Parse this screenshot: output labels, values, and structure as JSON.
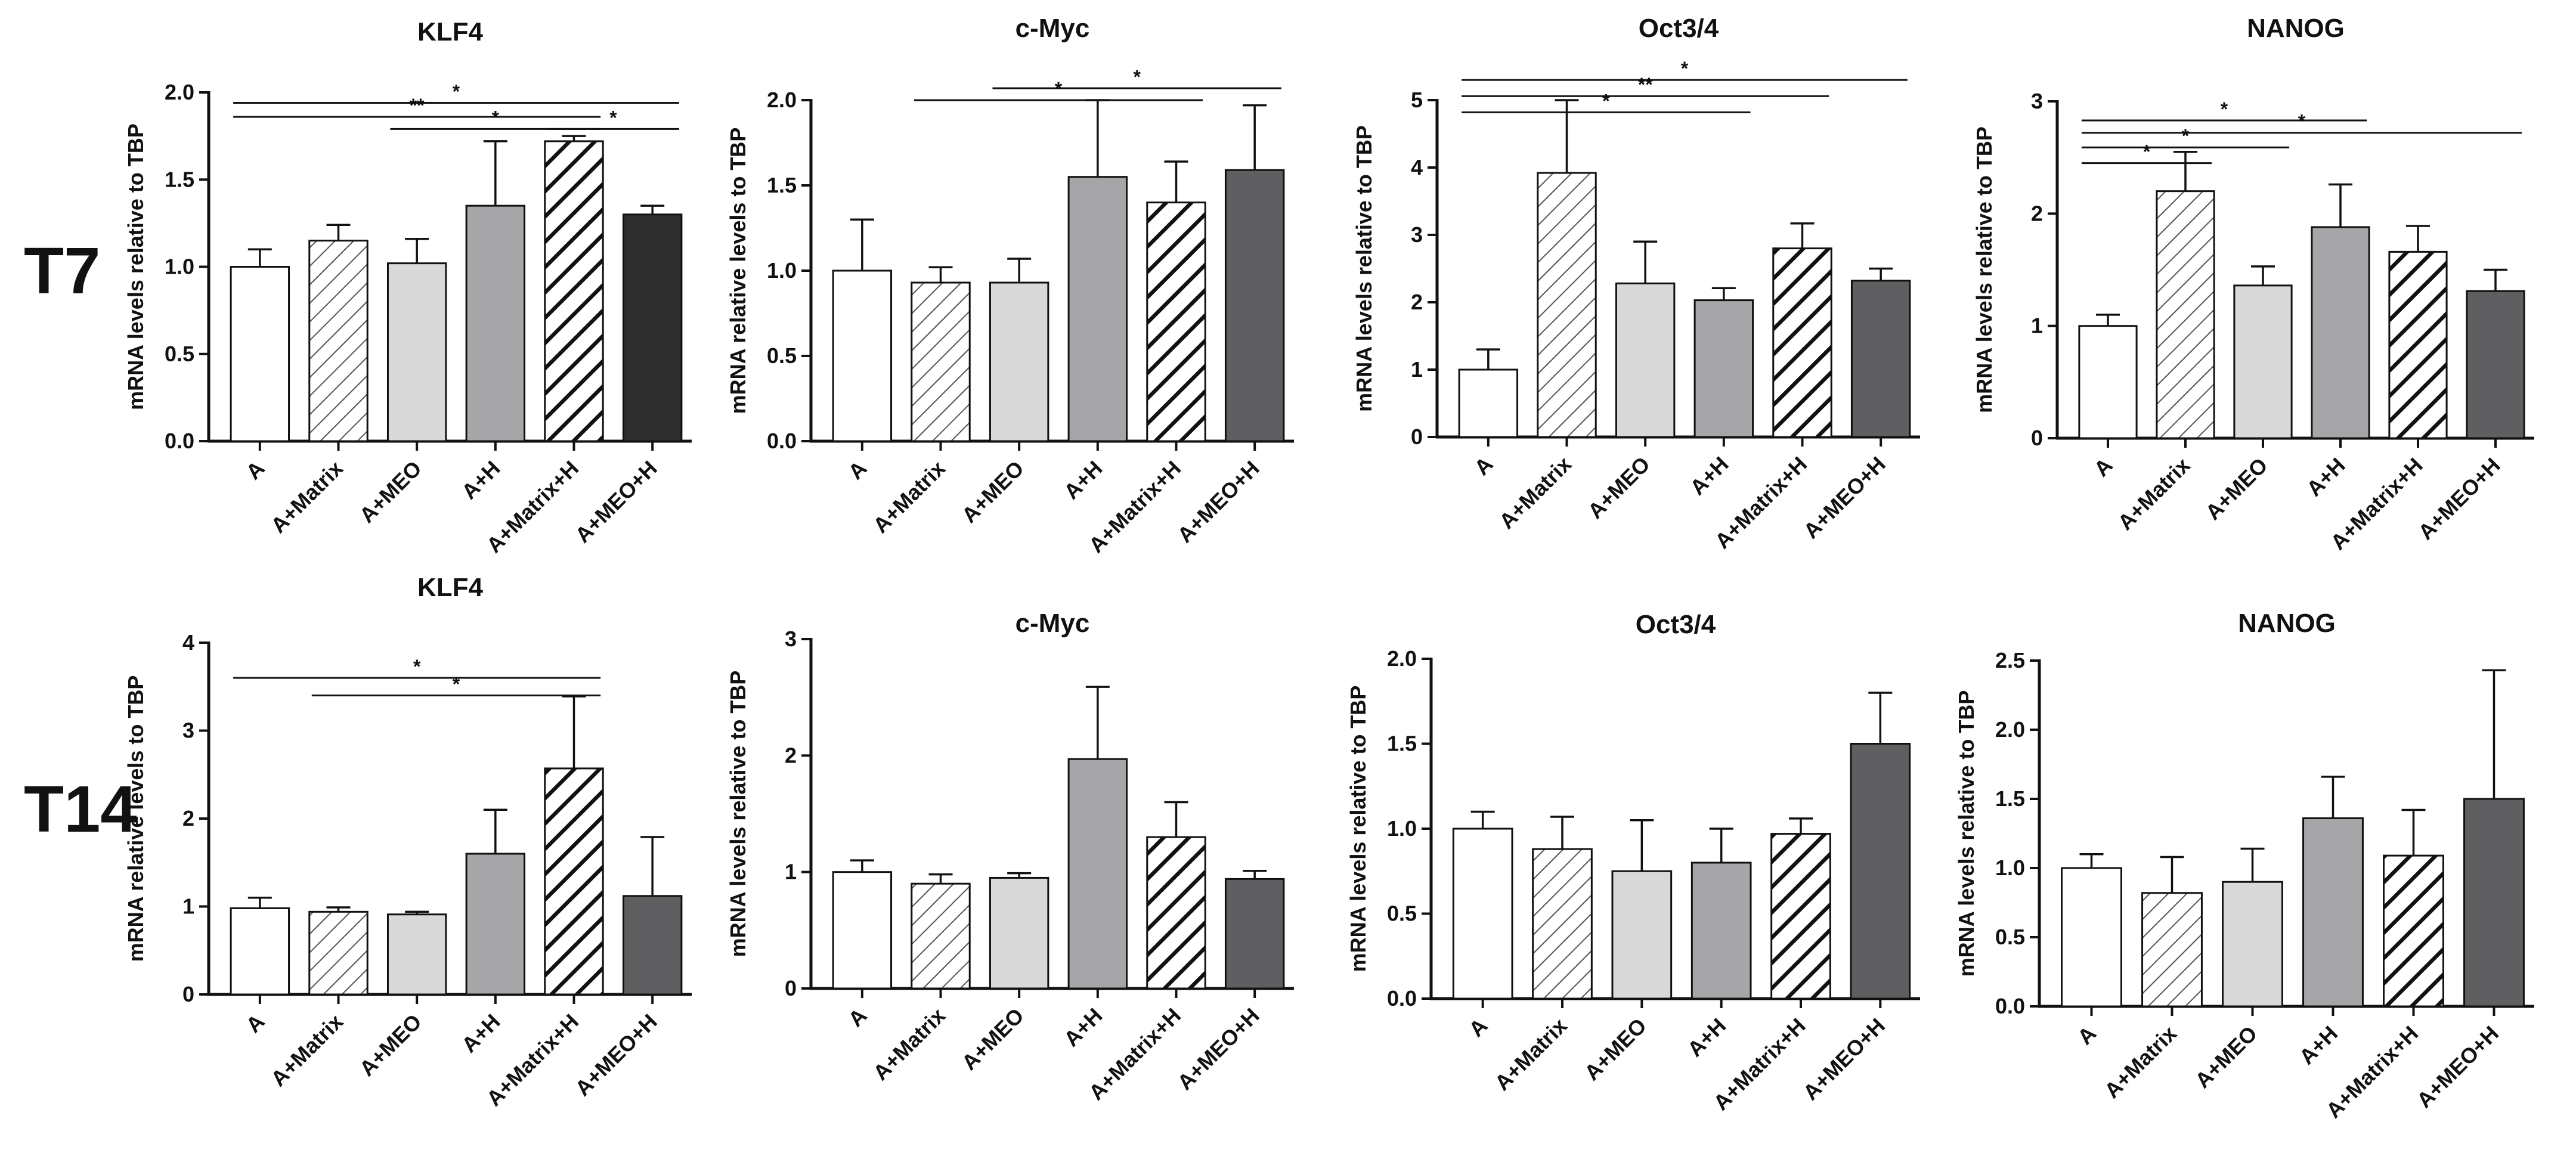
{
  "row_labels": [
    "T7",
    "T14"
  ],
  "categories": [
    "A",
    "A+Matrix",
    "A+MEO",
    "A+H",
    "A+Matrix+H",
    "A+MEO+H"
  ],
  "bar_styles": [
    "white",
    "hatch-thin",
    "light-gray",
    "mid-gray",
    "hatch-bold",
    "dark"
  ],
  "colors": {
    "white": "#ffffff",
    "light_gray": "#d9d9d9",
    "mid_gray": "#a6a6a8",
    "dark_T7_KLF4": "#2e2e2e",
    "dark": "#5f5f61",
    "axis": "#111111"
  },
  "chart_data": [
    {
      "type": "bar",
      "row": "T7",
      "title": "KLF4",
      "ylabel": "mRNA levels relative to TBP",
      "ylim": [
        0,
        2.0
      ],
      "yticks": [
        "0.0",
        "0.5",
        "1.0",
        "1.5",
        "2.0"
      ],
      "ytick_values": [
        0,
        0.5,
        1.0,
        1.5,
        2.0
      ],
      "values": [
        1.0,
        1.15,
        1.02,
        1.35,
        1.72,
        1.3
      ],
      "errors": [
        0.1,
        0.09,
        0.14,
        0.37,
        0.03,
        0.05
      ],
      "dark_variant": true,
      "significance": [
        {
          "from": 0,
          "to": 5,
          "label": "*",
          "y": 1.94
        },
        {
          "from": 0,
          "to": 4,
          "label": "**",
          "y": 1.86
        },
        {
          "from": 2,
          "to": 4,
          "label": "*",
          "y": 1.79
        },
        {
          "from": 4,
          "to": 5,
          "label": "*",
          "y": 1.79
        }
      ]
    },
    {
      "type": "bar",
      "row": "T7",
      "title": "c-Myc",
      "ylabel": "mRNA relative levels to TBP",
      "ylim": [
        0,
        2.0
      ],
      "yticks": [
        "0.0",
        "0.5",
        "1.0",
        "1.5",
        "2.0"
      ],
      "ytick_values": [
        0,
        0.5,
        1.0,
        1.5,
        2.0
      ],
      "values": [
        1.0,
        0.93,
        0.93,
        1.55,
        1.4,
        1.59
      ],
      "errors": [
        0.3,
        0.09,
        0.14,
        0.45,
        0.24,
        0.38
      ],
      "significance": [
        {
          "from": 2,
          "to": 5,
          "label": "*",
          "y": 2.07
        },
        {
          "from": 1,
          "to": 4,
          "label": "*",
          "y": 2.0
        }
      ]
    },
    {
      "type": "bar",
      "row": "T7",
      "title": "Oct3/4",
      "ylabel": "mRNA levels relative to TBP",
      "ylim": [
        0,
        5
      ],
      "yticks": [
        "0",
        "1",
        "2",
        "3",
        "4",
        "5"
      ],
      "ytick_values": [
        0,
        1,
        2,
        3,
        4,
        5
      ],
      "values": [
        1.0,
        3.92,
        2.28,
        2.03,
        2.8,
        2.32
      ],
      "errors": [
        0.3,
        1.08,
        0.62,
        0.18,
        0.37,
        0.18
      ],
      "significance": [
        {
          "from": 0,
          "to": 5,
          "label": "*",
          "y": 5.3
        },
        {
          "from": 0,
          "to": 4,
          "label": "**",
          "y": 5.06
        },
        {
          "from": 0,
          "to": 3,
          "label": "*",
          "y": 4.82
        }
      ]
    },
    {
      "type": "bar",
      "row": "T7",
      "title": "NANOG",
      "ylabel": "mRNA levels relative to TBP",
      "ylim": [
        0,
        3
      ],
      "yticks": [
        "0",
        "1",
        "2",
        "3"
      ],
      "ytick_values": [
        0,
        1,
        2,
        3
      ],
      "values": [
        1.0,
        2.2,
        1.36,
        1.88,
        1.66,
        1.31
      ],
      "errors": [
        0.1,
        0.35,
        0.17,
        0.38,
        0.23,
        0.19
      ],
      "significance": [
        {
          "from": 0,
          "to": 3,
          "label": "*",
          "y": 2.83
        },
        {
          "from": 0,
          "to": 5,
          "label": "*",
          "y": 2.72
        },
        {
          "from": 0,
          "to": 2,
          "label": "*",
          "y": 2.59
        },
        {
          "from": 0,
          "to": 1,
          "label": "*",
          "y": 2.45
        }
      ]
    },
    {
      "type": "bar",
      "row": "T14",
      "title": "KLF4",
      "ylabel": "mRNA relative levels to TBP",
      "ylim": [
        0,
        4
      ],
      "yticks": [
        "0",
        "1",
        "2",
        "3",
        "4"
      ],
      "ytick_values": [
        0,
        1,
        2,
        3,
        4
      ],
      "values": [
        0.98,
        0.94,
        0.91,
        1.6,
        2.57,
        1.12
      ],
      "errors": [
        0.12,
        0.05,
        0.03,
        0.5,
        0.82,
        0.67
      ],
      "significance": [
        {
          "from": 0,
          "to": 4,
          "label": "*",
          "y": 3.6
        },
        {
          "from": 1,
          "to": 4,
          "label": "*",
          "y": 3.4
        }
      ]
    },
    {
      "type": "bar",
      "row": "T14",
      "title": "c-Myc",
      "ylabel": "mRNA levels relative to TBP",
      "ylim": [
        0,
        3
      ],
      "yticks": [
        "0",
        "1",
        "2",
        "3"
      ],
      "ytick_values": [
        0,
        1,
        2,
        3
      ],
      "values": [
        1.0,
        0.9,
        0.95,
        1.97,
        1.3,
        0.94
      ],
      "errors": [
        0.1,
        0.08,
        0.04,
        0.62,
        0.3,
        0.07
      ],
      "significance": []
    },
    {
      "type": "bar",
      "row": "T14",
      "title": "Oct3/4",
      "ylabel": "mRNA levels relative to TBP",
      "ylim": [
        0,
        2.0
      ],
      "yticks": [
        "0.0",
        "0.5",
        "1.0",
        "1.5",
        "2.0"
      ],
      "ytick_values": [
        0,
        0.5,
        1.0,
        1.5,
        2.0
      ],
      "values": [
        1.0,
        0.88,
        0.75,
        0.8,
        0.97,
        1.5
      ],
      "errors": [
        0.1,
        0.19,
        0.3,
        0.2,
        0.09,
        0.3
      ],
      "significance": []
    },
    {
      "type": "bar",
      "row": "T14",
      "title": "NANOG",
      "ylabel": "mRNA levels relative to TBP",
      "ylim": [
        0,
        2.5
      ],
      "yticks": [
        "0.0",
        "0.5",
        "1.0",
        "1.5",
        "2.0",
        "2.5"
      ],
      "ytick_values": [
        0,
        0.5,
        1.0,
        1.5,
        2.0,
        2.5
      ],
      "values": [
        1.0,
        0.82,
        0.9,
        1.36,
        1.09,
        1.5
      ],
      "errors": [
        0.1,
        0.26,
        0.24,
        0.3,
        0.33,
        0.93
      ],
      "significance": []
    }
  ]
}
